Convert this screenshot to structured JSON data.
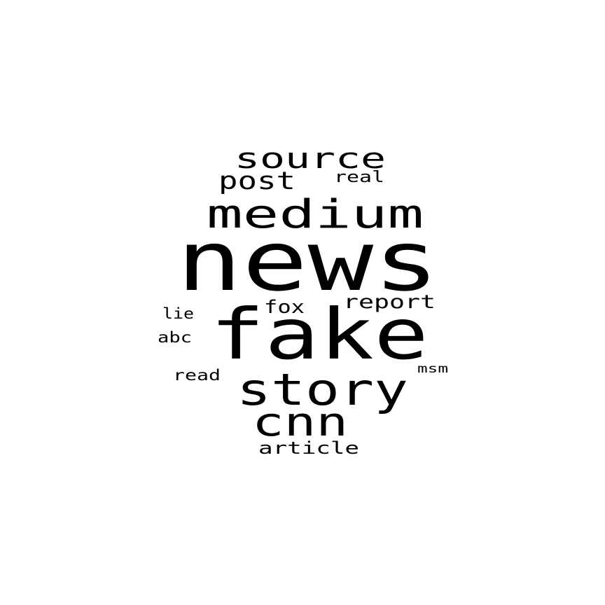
{
  "word_cloud": {
    "text_color": "#000000",
    "background_color": "#ffffff",
    "words": [
      {
        "text": "news"
      },
      {
        "text": "fake"
      },
      {
        "text": "medium"
      },
      {
        "text": "story"
      },
      {
        "text": "source"
      },
      {
        "text": "cnn"
      },
      {
        "text": "post"
      },
      {
        "text": "report"
      },
      {
        "text": "article"
      },
      {
        "text": "fox"
      },
      {
        "text": "real"
      },
      {
        "text": "read"
      },
      {
        "text": "lie"
      },
      {
        "text": "abc"
      },
      {
        "text": "msm"
      }
    ]
  }
}
